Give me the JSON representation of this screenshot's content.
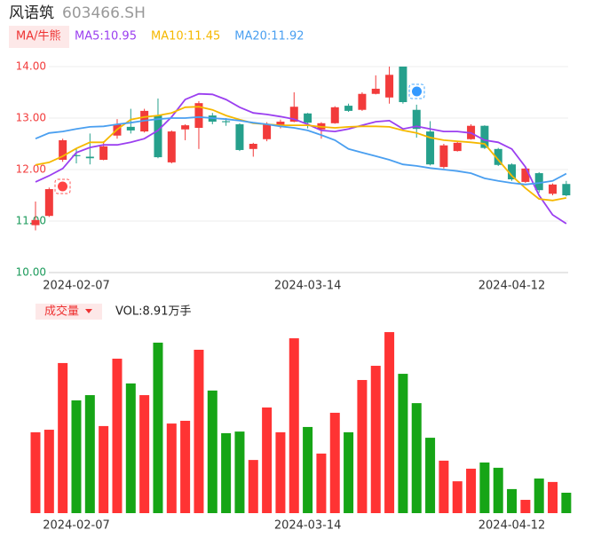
{
  "chart_data": {
    "type": "candlestick",
    "title": "风语筑",
    "subtitle": "603466.SH",
    "indicator_label": "MA/牛熊",
    "volume_label": "成交量",
    "volume_text": "VOL:8.91万手",
    "categories": [
      null,
      null,
      null,
      "2024-02-07",
      null,
      null,
      null,
      null,
      null,
      null,
      null,
      null,
      null,
      null,
      null,
      null,
      null,
      null,
      null,
      null,
      "2024-03-14",
      null,
      null,
      null,
      null,
      null,
      null,
      null,
      null,
      null,
      null,
      null,
      null,
      null,
      null,
      "2024-04-12",
      null,
      null,
      null,
      null
    ],
    "open": [
      10.92,
      11.1,
      12.19,
      12.28,
      12.25,
      12.19,
      12.66,
      12.83,
      12.74,
      13.05,
      12.14,
      12.78,
      12.81,
      13.05,
      12.94,
      12.88,
      12.4,
      12.59,
      12.86,
      12.93,
      13.09,
      12.78,
      12.9,
      13.24,
      13.16,
      13.47,
      13.4,
      14.0,
      13.16,
      12.74,
      12.05,
      12.36,
      12.59,
      12.85,
      12.4,
      12.1,
      11.76,
      11.93,
      11.53,
      11.72
    ],
    "high": [
      11.38,
      11.65,
      12.6,
      12.42,
      12.7,
      12.55,
      12.98,
      13.18,
      13.18,
      13.38,
      12.76,
      12.88,
      13.33,
      13.1,
      13.0,
      12.9,
      12.52,
      12.92,
      12.97,
      13.5,
      13.1,
      12.92,
      13.23,
      13.28,
      13.5,
      13.83,
      14.0,
      14.0,
      13.26,
      12.94,
      12.5,
      12.55,
      12.88,
      12.86,
      12.42,
      12.12,
      12.04,
      11.95,
      11.73,
      11.78
    ],
    "low": [
      10.82,
      11.08,
      12.15,
      12.12,
      12.1,
      12.18,
      12.6,
      12.7,
      12.72,
      12.22,
      12.12,
      12.57,
      12.4,
      12.88,
      12.85,
      12.36,
      12.25,
      12.55,
      12.8,
      12.92,
      12.8,
      12.6,
      12.89,
      13.12,
      13.14,
      13.46,
      13.28,
      13.28,
      12.62,
      12.08,
      12.02,
      12.35,
      12.58,
      12.4,
      12.07,
      11.78,
      11.74,
      11.55,
      11.5,
      11.48
    ],
    "close": [
      11.02,
      11.62,
      12.57,
      12.26,
      12.22,
      12.45,
      12.88,
      12.76,
      13.14,
      12.24,
      12.74,
      12.86,
      13.29,
      12.93,
      12.92,
      12.38,
      12.5,
      12.88,
      12.93,
      13.22,
      12.91,
      12.9,
      13.21,
      13.14,
      13.47,
      13.57,
      13.84,
      13.31,
      12.79,
      12.1,
      12.47,
      12.52,
      12.85,
      12.42,
      12.09,
      11.81,
      12.02,
      11.6,
      11.71,
      11.5
    ],
    "volume": [
      35.3,
      36.4,
      65.5,
      49.2,
      51.5,
      38.0,
      67.4,
      56.6,
      51.5,
      74.4,
      39.1,
      40.3,
      71.3,
      53.5,
      34.9,
      35.6,
      23.2,
      46.1,
      35.3,
      76.3,
      37.6,
      26.0,
      43.8,
      35.3,
      58.1,
      64.3,
      79.0,
      60.8,
      48.0,
      32.9,
      22.9,
      13.9,
      19.4,
      22.1,
      19.8,
      10.5,
      5.8,
      15.1,
      13.6,
      8.91
    ],
    "series": [
      {
        "name": "MA5:10.95",
        "color": "#9b3ff0",
        "values": [
          11.76,
          11.88,
          12.02,
          12.33,
          12.43,
          12.48,
          12.48,
          12.53,
          12.6,
          12.76,
          13.02,
          13.36,
          13.47,
          13.46,
          13.36,
          13.21,
          13.1,
          13.07,
          13.03,
          12.98,
          12.88,
          12.76,
          12.74,
          12.79,
          12.86,
          12.93,
          12.95,
          12.79,
          12.84,
          12.79,
          12.74,
          12.74,
          12.71,
          12.57,
          12.53,
          12.4,
          12.05,
          11.5,
          11.12,
          10.95
        ]
      },
      {
        "name": "MA10:11.45",
        "color": "#f5b800",
        "values": [
          12.09,
          12.14,
          12.26,
          12.41,
          12.53,
          12.53,
          12.78,
          12.97,
          13.02,
          13.05,
          13.1,
          13.21,
          13.22,
          13.16,
          13.05,
          12.97,
          12.9,
          12.88,
          12.86,
          12.86,
          12.86,
          12.83,
          12.81,
          12.83,
          12.84,
          12.84,
          12.83,
          12.76,
          12.71,
          12.62,
          12.57,
          12.55,
          12.53,
          12.5,
          12.19,
          11.88,
          11.64,
          11.43,
          11.4,
          11.45
        ]
      },
      {
        "name": "MA20:11.92",
        "color": "#4a9ff0",
        "values": [
          12.6,
          12.71,
          12.74,
          12.79,
          12.83,
          12.84,
          12.88,
          12.91,
          12.95,
          12.98,
          13.0,
          13.0,
          13.02,
          13.0,
          12.98,
          12.95,
          12.91,
          12.88,
          12.84,
          12.81,
          12.76,
          12.67,
          12.57,
          12.4,
          12.33,
          12.26,
          12.19,
          12.1,
          12.07,
          12.03,
          12.0,
          11.97,
          11.93,
          11.83,
          11.78,
          11.74,
          11.71,
          11.74,
          11.78,
          11.92
        ]
      }
    ],
    "up_color": "#f23b3b",
    "down_color": "#26a08c",
    "volume_up_color": "#ff3333",
    "volume_down_color": "#16a516",
    "ylim": [
      10,
      14
    ],
    "yticks": [
      {
        "value": 14,
        "label": "14.00"
      },
      {
        "value": 13,
        "label": "13.00"
      },
      {
        "value": 12,
        "label": "12.00"
      },
      {
        "value": 11,
        "label": "11.00"
      },
      {
        "value": 10,
        "label": "10.00"
      }
    ],
    "ytick_colors": [
      "#f23b3b",
      "#f23b3b",
      "#f23b3b",
      "#1a9a5a",
      "#1a9a5a"
    ],
    "volume_ylim": [
      0,
      80
    ],
    "grid": true
  }
}
